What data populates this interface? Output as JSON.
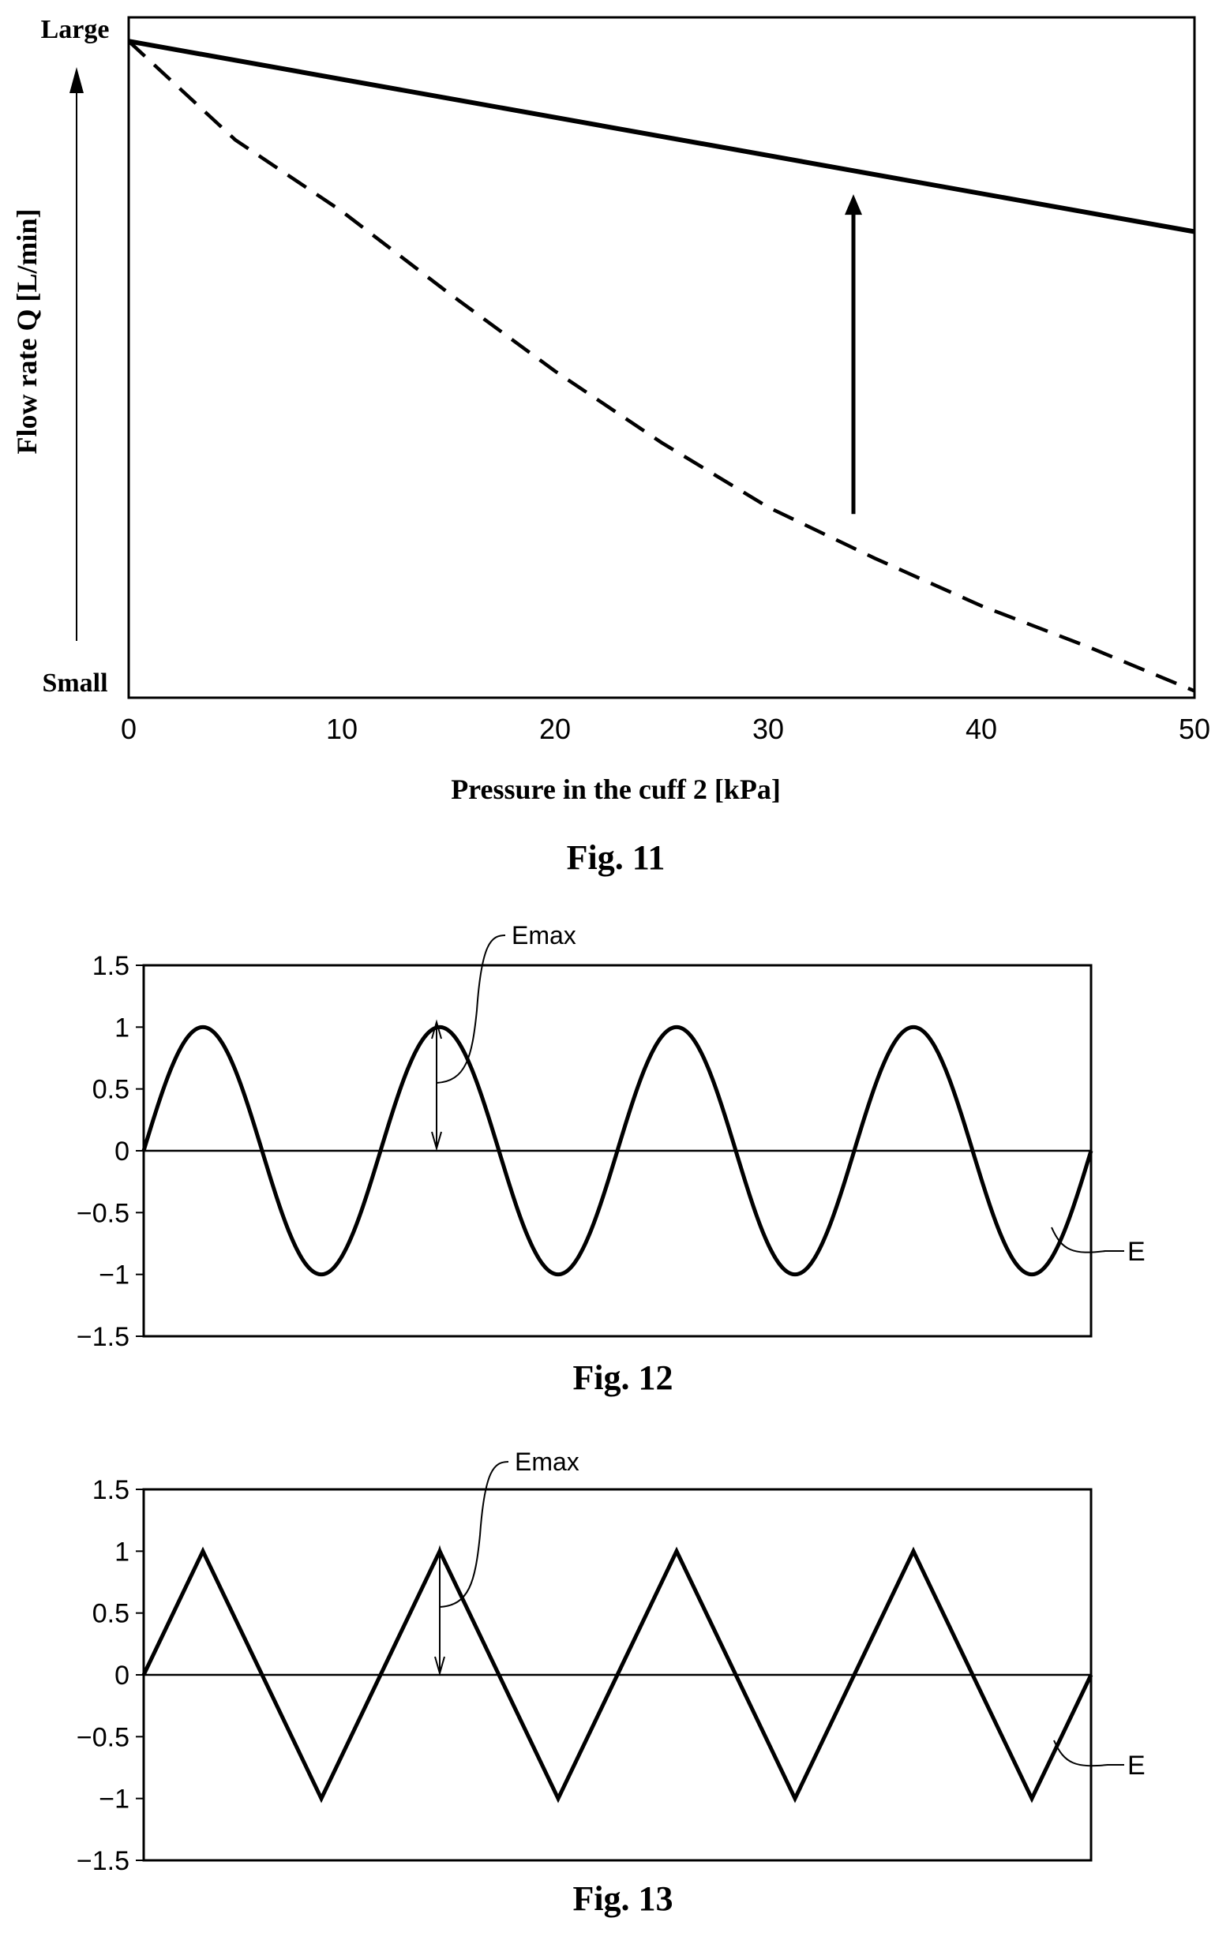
{
  "chart_data": [
    {
      "type": "line",
      "figure_label": "Fig. 11",
      "xlabel": "Pressure in the cuff 2 [kPa]",
      "ylabel": "Flow rate Q [L/min]",
      "y_top_label": "Large",
      "y_bottom_label": "Small",
      "xlim": [
        0,
        50
      ],
      "ylim": [
        0,
        1
      ],
      "x_ticks": [
        "0",
        "10",
        "20",
        "30",
        "40",
        "50"
      ],
      "series": [
        {
          "style": "solid",
          "x": [
            0,
            50
          ],
          "y": [
            0.965,
            0.685
          ]
        },
        {
          "style": "dashed",
          "x": [
            0,
            5,
            10,
            15,
            20,
            25,
            30,
            35,
            40,
            45,
            50
          ],
          "y": [
            0.965,
            0.82,
            0.715,
            0.595,
            0.48,
            0.375,
            0.28,
            0.205,
            0.135,
            0.075,
            0.01
          ]
        }
      ],
      "annotation_arrow": {
        "x": 34,
        "from_y": 0.27,
        "to_y": 0.74
      },
      "grid": false
    },
    {
      "type": "line",
      "figure_label": "Fig. 12",
      "waveform": "sine",
      "cycles": 4,
      "amplitude": 1,
      "xlim": [
        0,
        4
      ],
      "ylim": [
        -1.5,
        1.5
      ],
      "y_ticks": [
        "1.5",
        "1",
        "0.5",
        "0",
        "-0.5",
        "-1",
        "-1.5"
      ],
      "annotations": [
        "Emax",
        "E"
      ],
      "grid": false
    },
    {
      "type": "line",
      "figure_label": "Fig. 13",
      "waveform": "triangle",
      "cycles": 4,
      "amplitude": 1,
      "xlim": [
        0,
        4
      ],
      "ylim": [
        -1.5,
        1.5
      ],
      "y_ticks": [
        "1.5",
        "1",
        "0.5",
        "0",
        "-0.5",
        "-1",
        "-1.5"
      ],
      "annotations": [
        "Emax",
        "E"
      ],
      "grid": false
    }
  ]
}
